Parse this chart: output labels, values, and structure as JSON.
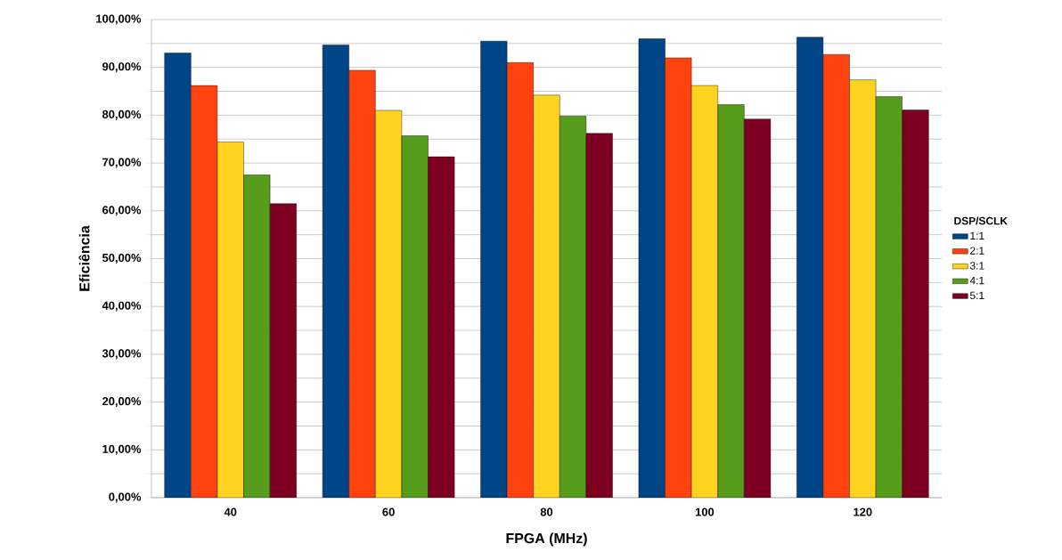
{
  "chart_data": {
    "type": "bar",
    "xlabel": "FPGA (MHz)",
    "ylabel": "Eficiência",
    "legend_title": "DSP/SCLK",
    "legend": "right",
    "grid": "y",
    "categories": [
      "40",
      "60",
      "80",
      "100",
      "120"
    ],
    "ylim": [
      0,
      100
    ],
    "yticks": [
      {
        "value": 0,
        "label": "0,00%"
      },
      {
        "value": 5,
        "label": null
      },
      {
        "value": 10,
        "label": "10,00%"
      },
      {
        "value": 15,
        "label": null
      },
      {
        "value": 20,
        "label": "20,00%"
      },
      {
        "value": 25,
        "label": null
      },
      {
        "value": 30,
        "label": "30,00%"
      },
      {
        "value": 35,
        "label": null
      },
      {
        "value": 40,
        "label": "40,00%"
      },
      {
        "value": 45,
        "label": null
      },
      {
        "value": 50,
        "label": "50,00%"
      },
      {
        "value": 55,
        "label": null
      },
      {
        "value": 60,
        "label": "60,00%"
      },
      {
        "value": 65,
        "label": null
      },
      {
        "value": 70,
        "label": "70,00%"
      },
      {
        "value": 75,
        "label": null
      },
      {
        "value": 80,
        "label": "80,00%"
      },
      {
        "value": 85,
        "label": null
      },
      {
        "value": 90,
        "label": "90,00%"
      },
      {
        "value": 95,
        "label": null
      },
      {
        "value": 100,
        "label": "100,00%"
      }
    ],
    "series": [
      {
        "name": "1:1",
        "color": "#004586",
        "values": [
          93.0,
          94.7,
          95.5,
          96.0,
          96.3
        ]
      },
      {
        "name": "2:1",
        "color": "#ff420e",
        "values": [
          86.2,
          89.4,
          91.0,
          92.0,
          92.7
        ]
      },
      {
        "name": "3:1",
        "color": "#ffd320",
        "values": [
          74.4,
          81.0,
          84.2,
          86.2,
          87.4
        ]
      },
      {
        "name": "4:1",
        "color": "#579d1c",
        "values": [
          67.5,
          75.7,
          79.8,
          82.2,
          83.9
        ]
      },
      {
        "name": "5:1",
        "color": "#7e0021",
        "values": [
          61.5,
          71.3,
          76.2,
          79.2,
          81.1
        ]
      }
    ]
  }
}
